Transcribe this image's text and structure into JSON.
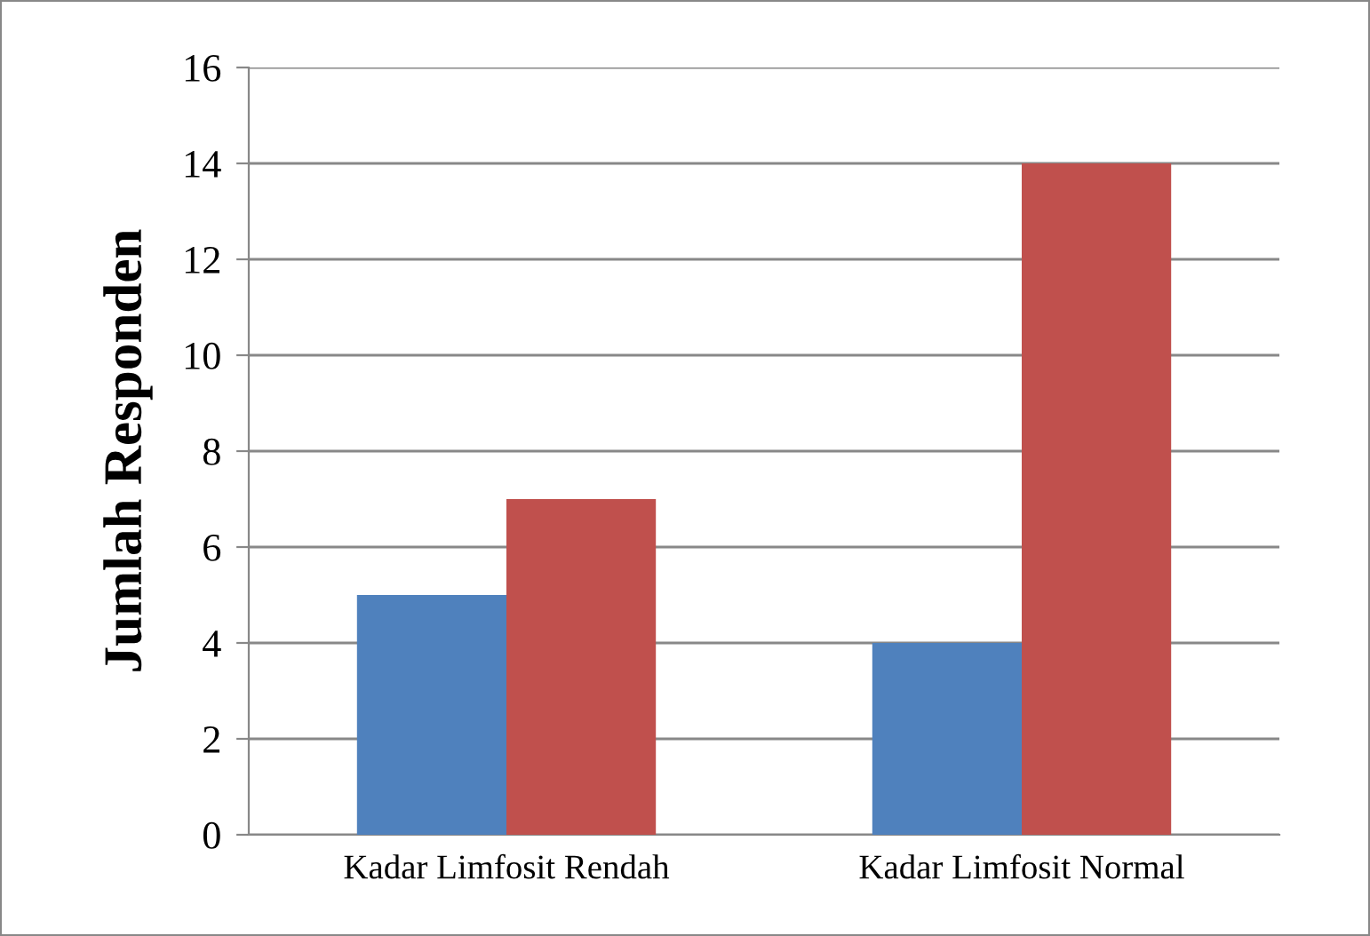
{
  "chart_data": {
    "type": "bar",
    "ylabel": "Jumlah Responden",
    "categories": [
      "Kadar Limfosit Rendah",
      "Kadar Limfosit Normal"
    ],
    "series": [
      {
        "color": "#4f81bd",
        "values": [
          5,
          4
        ]
      },
      {
        "color": "#c0504d",
        "values": [
          7,
          14
        ]
      }
    ],
    "ylim": [
      0,
      16
    ],
    "yticks": [
      0,
      2,
      4,
      6,
      8,
      10,
      12,
      14,
      16
    ],
    "grid": "y",
    "legend": false
  }
}
